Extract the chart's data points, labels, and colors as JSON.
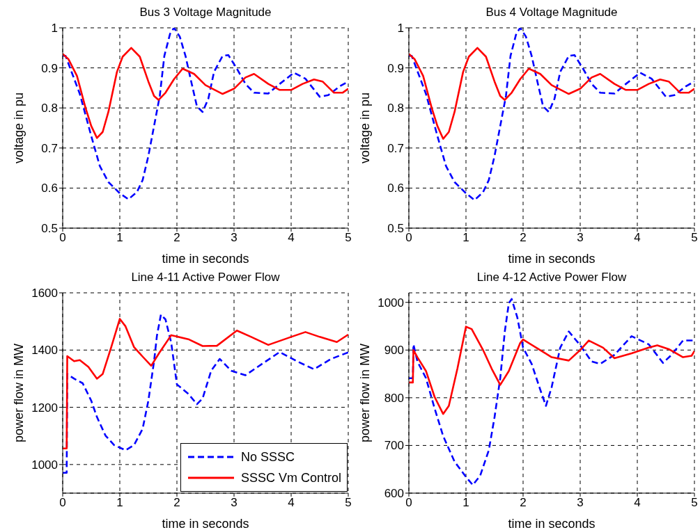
{
  "chart_data": [
    {
      "type": "line",
      "title": "Bus 3 Voltage Magnitude",
      "xlabel": "time in seconds",
      "ylabel": "voltage in pu",
      "xlim": [
        0,
        5
      ],
      "xticks": [
        0,
        1,
        2,
        3,
        4,
        5
      ],
      "ylim": [
        0.5,
        1
      ],
      "yticks": [
        0.5,
        0.6,
        0.7,
        0.8,
        0.9,
        1
      ],
      "grid": true,
      "series": [
        {
          "color": "#0000ff",
          "line_style": "dashed",
          "x": [
            0,
            0.05,
            0.3,
            0.5,
            0.65,
            0.8,
            1,
            1.15,
            1.3,
            1.4,
            1.5,
            1.6,
            1.7,
            1.78,
            1.88,
            1.95,
            2.05,
            2.15,
            2.25,
            2.35,
            2.45,
            2.55,
            2.65,
            2.8,
            2.9,
            3.05,
            3.2,
            3.35,
            3.6,
            3.8,
            4.05,
            4.25,
            4.5,
            4.65,
            4.85,
            5
          ],
          "values": [
            0.93,
            0.93,
            0.835,
            0.73,
            0.655,
            0.615,
            0.587,
            0.572,
            0.59,
            0.62,
            0.68,
            0.755,
            0.83,
            0.93,
            0.985,
            1.0,
            0.978,
            0.93,
            0.866,
            0.804,
            0.79,
            0.823,
            0.89,
            0.93,
            0.932,
            0.898,
            0.86,
            0.838,
            0.836,
            0.86,
            0.888,
            0.873,
            0.828,
            0.832,
            0.854,
            0.866
          ]
        },
        {
          "color": "#ff0000",
          "line_style": "solid",
          "x": [
            0,
            0.1,
            0.25,
            0.4,
            0.5,
            0.6,
            0.7,
            0.8,
            0.95,
            1.05,
            1.2,
            1.35,
            1.5,
            1.6,
            1.68,
            1.8,
            1.95,
            2.1,
            2.3,
            2.5,
            2.8,
            3,
            3.2,
            3.35,
            3.6,
            3.8,
            4,
            4.2,
            4.4,
            4.55,
            4.75,
            4.9,
            5
          ],
          "values": [
            0.935,
            0.922,
            0.88,
            0.8,
            0.755,
            0.725,
            0.74,
            0.79,
            0.89,
            0.928,
            0.95,
            0.928,
            0.866,
            0.83,
            0.82,
            0.838,
            0.872,
            0.898,
            0.885,
            0.857,
            0.835,
            0.848,
            0.876,
            0.885,
            0.86,
            0.845,
            0.845,
            0.86,
            0.871,
            0.866,
            0.838,
            0.838,
            0.848
          ]
        }
      ]
    },
    {
      "type": "line",
      "title": "Bus 4 Voltage Magnitude",
      "xlabel": "time in seconds",
      "ylabel": "voltage in pu",
      "xlim": [
        0,
        5
      ],
      "xticks": [
        0,
        1,
        2,
        3,
        4,
        5
      ],
      "ylim": [
        0.5,
        1
      ],
      "yticks": [
        0.5,
        0.6,
        0.7,
        0.8,
        0.9,
        1
      ],
      "grid": true,
      "series": [
        {
          "color": "#0000ff",
          "line_style": "dashed",
          "x": [
            0,
            0.05,
            0.3,
            0.5,
            0.65,
            0.8,
            1,
            1.15,
            1.3,
            1.4,
            1.5,
            1.6,
            1.7,
            1.78,
            1.88,
            1.95,
            2.05,
            2.15,
            2.25,
            2.35,
            2.45,
            2.55,
            2.65,
            2.8,
            2.9,
            3.05,
            3.2,
            3.35,
            3.6,
            3.8,
            4.05,
            4.25,
            4.5,
            4.65,
            4.85,
            5
          ],
          "values": [
            0.93,
            0.93,
            0.835,
            0.73,
            0.655,
            0.615,
            0.587,
            0.57,
            0.59,
            0.62,
            0.68,
            0.755,
            0.83,
            0.93,
            0.985,
            1.0,
            0.978,
            0.93,
            0.866,
            0.804,
            0.79,
            0.823,
            0.89,
            0.93,
            0.932,
            0.898,
            0.86,
            0.838,
            0.836,
            0.86,
            0.888,
            0.873,
            0.828,
            0.832,
            0.854,
            0.866
          ]
        },
        {
          "color": "#ff0000",
          "line_style": "solid",
          "x": [
            0,
            0.1,
            0.25,
            0.4,
            0.5,
            0.6,
            0.7,
            0.8,
            0.95,
            1.05,
            1.2,
            1.35,
            1.5,
            1.6,
            1.68,
            1.8,
            1.95,
            2.1,
            2.3,
            2.5,
            2.8,
            3,
            3.2,
            3.35,
            3.6,
            3.8,
            4,
            4.2,
            4.4,
            4.55,
            4.75,
            4.9,
            5
          ],
          "values": [
            0.935,
            0.922,
            0.88,
            0.8,
            0.755,
            0.723,
            0.74,
            0.79,
            0.89,
            0.928,
            0.95,
            0.928,
            0.866,
            0.83,
            0.82,
            0.838,
            0.872,
            0.898,
            0.885,
            0.857,
            0.835,
            0.848,
            0.876,
            0.885,
            0.86,
            0.845,
            0.845,
            0.86,
            0.871,
            0.866,
            0.838,
            0.838,
            0.848
          ]
        }
      ]
    },
    {
      "type": "line",
      "title": "Line 4-11 Active Power Flow",
      "xlabel": "time in seconds",
      "ylabel": "power flow in MW",
      "xlim": [
        0,
        5
      ],
      "xticks": [
        0,
        1,
        2,
        3,
        4,
        5
      ],
      "ylim": [
        900,
        1600
      ],
      "yticks": [
        1000,
        1200,
        1400,
        1600
      ],
      "grid": true,
      "legend": "bottom right",
      "series": [
        {
          "name": "No SSSC",
          "color": "#0000ff",
          "line_style": "dashed",
          "x": [
            0,
            0.07,
            0.08,
            0.2,
            0.35,
            0.5,
            0.6,
            0.75,
            0.9,
            1.1,
            1.25,
            1.4,
            1.5,
            1.6,
            1.65,
            1.72,
            1.8,
            1.9,
            2,
            2.2,
            2.35,
            2.45,
            2.6,
            2.75,
            2.95,
            3.2,
            3.5,
            3.8,
            4.1,
            4.4,
            4.7,
            5
          ],
          "values": [
            971,
            971,
            1316,
            1300,
            1284,
            1223,
            1166,
            1101,
            1068,
            1050,
            1068,
            1125,
            1223,
            1361,
            1450,
            1524,
            1507,
            1426,
            1280,
            1247,
            1211,
            1231,
            1328,
            1369,
            1328,
            1312,
            1353,
            1393,
            1361,
            1333,
            1369,
            1392
          ]
        },
        {
          "name": "SSSC Vm Control",
          "color": "#ff0000",
          "line_style": "solid",
          "x": [
            0,
            0.07,
            0.08,
            0.2,
            0.3,
            0.45,
            0.6,
            0.7,
            0.85,
            1,
            1.1,
            1.25,
            1.4,
            1.55,
            1.7,
            1.9,
            2.2,
            2.45,
            2.7,
            3.05,
            3.3,
            3.6,
            4,
            4.25,
            4.5,
            4.8,
            5
          ],
          "values": [
            1056,
            1056,
            1379,
            1361,
            1365,
            1341,
            1300,
            1316,
            1410,
            1509,
            1483,
            1410,
            1377,
            1345,
            1393,
            1452,
            1438,
            1414,
            1415,
            1468,
            1446,
            1418,
            1446,
            1463,
            1446,
            1428,
            1454
          ]
        }
      ]
    },
    {
      "type": "line",
      "title": "Line 4-12 Active Power Flow",
      "xlabel": "time in seconds",
      "ylabel": "power flow in MW",
      "xlim": [
        0,
        5
      ],
      "xticks": [
        0,
        1,
        2,
        3,
        4,
        5
      ],
      "ylim": [
        600,
        1020
      ],
      "yticks": [
        600,
        700,
        800,
        900,
        1000
      ],
      "grid": true,
      "series": [
        {
          "color": "#0000ff",
          "line_style": "dashed",
          "x": [
            0,
            0.07,
            0.08,
            0.15,
            0.3,
            0.45,
            0.6,
            0.8,
            1,
            1.12,
            1.25,
            1.4,
            1.5,
            1.6,
            1.68,
            1.75,
            1.8,
            1.9,
            2,
            2.15,
            2.3,
            2.4,
            2.5,
            2.65,
            2.8,
            3,
            3.2,
            3.35,
            3.6,
            3.9,
            4.2,
            4.45,
            4.6,
            4.8,
            5
          ],
          "values": [
            841,
            841,
            912,
            876,
            841,
            778,
            720,
            666,
            634,
            617,
            637,
            690,
            759,
            841,
            939,
            998,
            1007,
            968,
            905,
            871,
            817,
            783,
            822,
            905,
            939,
            910,
            876,
            871,
            890,
            929,
            912,
            873,
            890,
            920,
            920
          ]
        },
        {
          "color": "#ff0000",
          "line_style": "solid",
          "x": [
            0,
            0.07,
            0.08,
            0.15,
            0.3,
            0.45,
            0.6,
            0.7,
            0.85,
            1,
            1.1,
            1.3,
            1.45,
            1.6,
            1.75,
            1.95,
            2,
            2.3,
            2.5,
            2.8,
            3,
            3.15,
            3.4,
            3.6,
            3.9,
            4.2,
            4.35,
            4.55,
            4.8,
            4.95,
            5
          ],
          "values": [
            832,
            832,
            900,
            885,
            856,
            802,
            766,
            783,
            861,
            949,
            944,
            900,
            861,
            827,
            856,
            915,
            922,
            900,
            885,
            878,
            900,
            920,
            905,
            883,
            893,
            905,
            910,
            902,
            885,
            888,
            898
          ]
        }
      ]
    }
  ]
}
